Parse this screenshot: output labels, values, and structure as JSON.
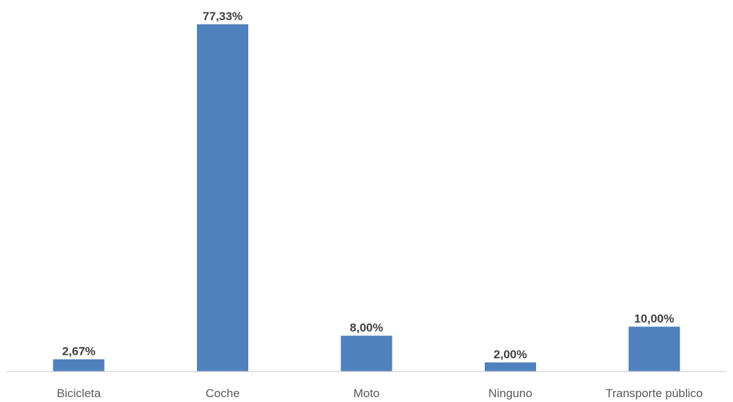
{
  "chart_data": {
    "type": "bar",
    "title": "",
    "xlabel": "",
    "ylabel": "",
    "categories": [
      "Bicicleta",
      "Coche",
      "Moto",
      "Ninguno",
      "Transporte público"
    ],
    "values": [
      2.67,
      77.33,
      8.0,
      2.0,
      10.0
    ],
    "value_labels": [
      "2,67%",
      "77,33%",
      "8,00%",
      "2,00%",
      "10,00%"
    ],
    "ylim": [
      0,
      77.33
    ],
    "grid": false,
    "legend": "none",
    "colors": {
      "bar": "#4f81bd",
      "axis": "#d9d9d9",
      "value_label": "#404040",
      "tick_label": "#595959"
    }
  }
}
